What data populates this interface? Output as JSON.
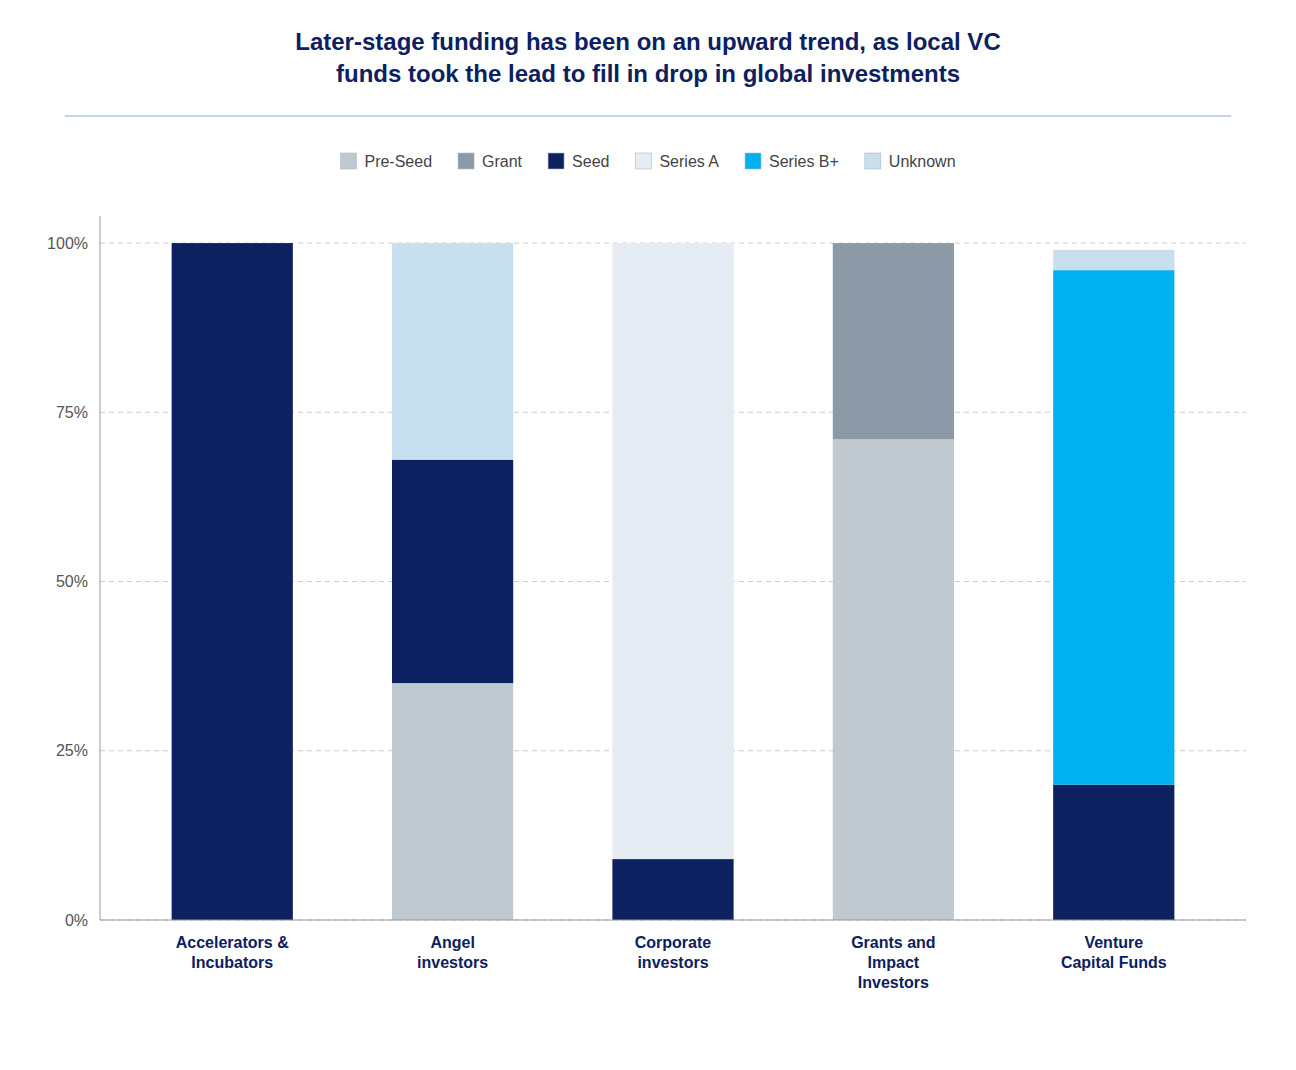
{
  "chart_data": {
    "type": "bar",
    "stacked": true,
    "title": "Later-stage funding has been on an upward trend, as local VC\nfunds took the lead to fill in drop in global investments",
    "categories": [
      "Accelerators &\nIncubators",
      "Angel\ninvestors",
      "Corporate\ninvestors",
      "Grants and\nImpact\nInvestors",
      "Venture\nCapital Funds"
    ],
    "series": [
      {
        "name": "Pre-Seed",
        "color": "#c0c8d0",
        "values": [
          0.0,
          0.35,
          0.0,
          0.71,
          0.0
        ]
      },
      {
        "name": "Grant",
        "color": "#8c9aa8",
        "values": [
          0.0,
          0.0,
          0.0,
          0.29,
          0.0
        ]
      },
      {
        "name": "Seed",
        "color": "#0d2060",
        "values": [
          1.0,
          0.33,
          0.09,
          0.0,
          0.2
        ]
      },
      {
        "name": "Series A",
        "color": "#e5ecf3",
        "values": [
          0.0,
          0.0,
          0.91,
          0.0,
          0.0
        ]
      },
      {
        "name": "Series B+",
        "color": "#00b0f0",
        "values": [
          0.0,
          0.0,
          0.0,
          0.0,
          0.76
        ]
      },
      {
        "name": "Unknown",
        "color": "#c8dff0",
        "values": [
          0.0,
          0.32,
          0.0,
          0.0,
          0.03
        ]
      }
    ],
    "ylim": [
      0,
      1.04
    ],
    "yticks": [
      {
        "value": 0,
        "label": "0%"
      },
      {
        "value": 0.25,
        "label": "25%"
      },
      {
        "value": 0.5,
        "label": "50%"
      },
      {
        "value": 0.75,
        "label": "75%"
      },
      {
        "value": 1.0,
        "label": "100%"
      }
    ],
    "grid": true,
    "legend": "top"
  }
}
